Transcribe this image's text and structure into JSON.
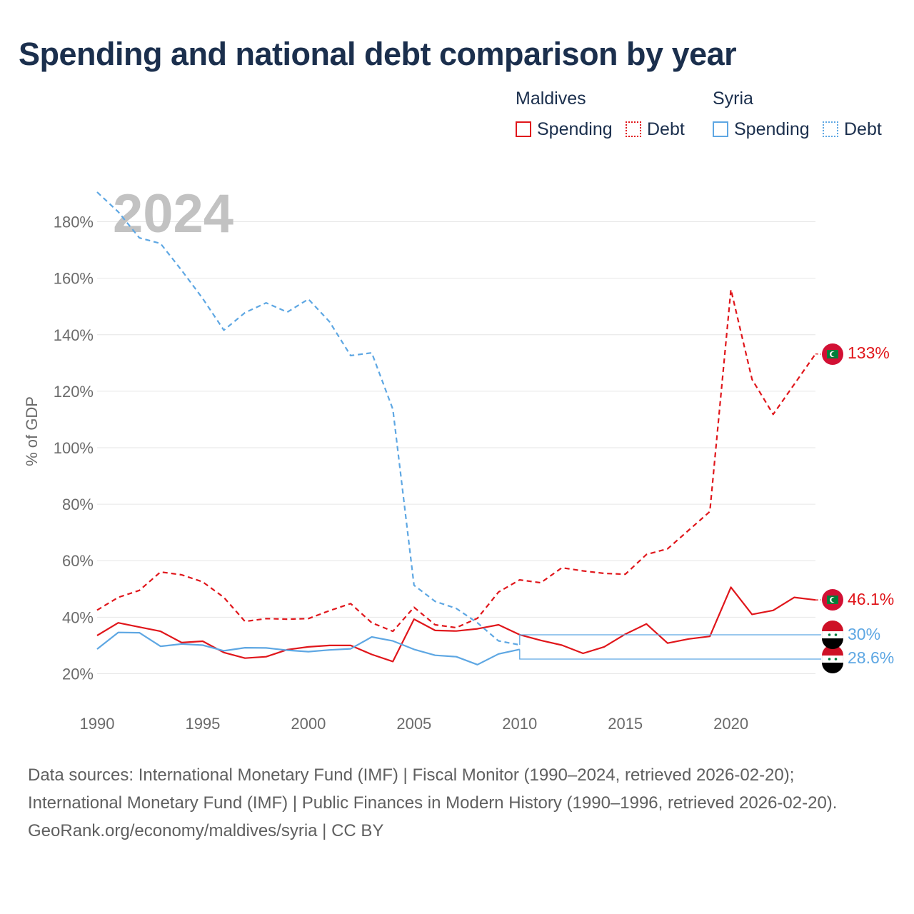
{
  "title": "Spending and national debt comparison by year",
  "legend": {
    "groups": [
      {
        "country": "Maldives",
        "spending_label": "Spending",
        "debt_label": "Debt",
        "color": "#e0161b"
      },
      {
        "country": "Syria",
        "spending_label": "Spending",
        "debt_label": "Debt",
        "color": "#5ea7e3"
      }
    ]
  },
  "year_overlay": "2024",
  "footer": {
    "sources": "Data sources: International Monetary Fund (IMF) | Fiscal Monitor (1990–2024, retrieved 2026-02-20); International Monetary Fund (IMF) | Public Finances in Modern History (1990–1996, retrieved 2026-02-20).",
    "credit": "GeoRank.org/economy/maldives/syria | CC BY"
  },
  "chart_data": {
    "type": "line",
    "title": "Spending and national debt comparison by year",
    "xlabel": "",
    "ylabel": "% of GDP",
    "xlim": [
      1990,
      2024
    ],
    "ylim": [
      10,
      190
    ],
    "xticks": [
      1990,
      1995,
      2000,
      2005,
      2010,
      2015,
      2020
    ],
    "xtick_labels": [
      "1990",
      "1995",
      "2000",
      "2005",
      "2010",
      "2015",
      "2020"
    ],
    "yticks": [
      20,
      40,
      60,
      80,
      100,
      120,
      140,
      160,
      180
    ],
    "ytick_labels": [
      "20%",
      "40%",
      "60%",
      "80%",
      "100%",
      "120%",
      "140%",
      "160%",
      "180%"
    ],
    "grid": true,
    "legend_position": "top-right",
    "series": [
      {
        "name": "Maldives Spending",
        "country": "Maldives",
        "measure": "Spending",
        "style": "solid",
        "color": "#e0161b",
        "x": [
          1990,
          1991,
          1992,
          1993,
          1994,
          1995,
          1996,
          1997,
          1998,
          1999,
          2000,
          2001,
          2002,
          2003,
          2004,
          2005,
          2006,
          2007,
          2008,
          2009,
          2010,
          2011,
          2012,
          2013,
          2014,
          2015,
          2016,
          2017,
          2018,
          2019,
          2020,
          2021,
          2022,
          2023,
          2024
        ],
        "values": [
          33.5,
          38,
          36.5,
          35,
          31,
          31.5,
          27.5,
          25.5,
          26,
          28.5,
          29.5,
          30,
          30,
          26.8,
          24.3,
          39.3,
          35.3,
          35.1,
          35.9,
          37.3,
          33.8,
          31.8,
          30.1,
          27.2,
          29.5,
          34,
          37.6,
          30.8,
          32.3,
          33.2,
          50.6,
          41,
          42.4,
          47,
          46.1
        ],
        "end_label": "46.1%"
      },
      {
        "name": "Maldives Debt",
        "country": "Maldives",
        "measure": "Debt",
        "style": "dashed",
        "color": "#e0161b",
        "x": [
          1990,
          1991,
          1992,
          1993,
          1994,
          1995,
          1996,
          1997,
          1998,
          1999,
          2000,
          2001,
          2002,
          2003,
          2004,
          2005,
          2006,
          2007,
          2008,
          2009,
          2010,
          2011,
          2012,
          2013,
          2014,
          2015,
          2016,
          2017,
          2018,
          2019,
          2020,
          2021,
          2022,
          2023,
          2024
        ],
        "values": [
          42.5,
          47,
          49.5,
          56,
          55,
          52.5,
          47,
          38.5,
          39.5,
          39.3,
          39.5,
          42.3,
          44.8,
          38,
          35,
          43.5,
          37.3,
          36.3,
          39.6,
          48.9,
          53.2,
          52.2,
          57.5,
          56.4,
          55.5,
          55.2,
          62.2,
          64.2,
          70.8,
          77.4,
          156,
          124.2,
          111.8,
          122.5,
          133.2
        ],
        "end_label": "133%"
      },
      {
        "name": "Syria Spending",
        "country": "Syria",
        "measure": "Spending",
        "style": "solid",
        "color": "#5ea7e3",
        "x": [
          1990,
          1991,
          1992,
          1993,
          1994,
          1995,
          1996,
          1997,
          1998,
          1999,
          2000,
          2001,
          2002,
          2003,
          2004,
          2005,
          2006,
          2007,
          2008,
          2009,
          2010
        ],
        "values": [
          28.7,
          34.6,
          34.5,
          29.7,
          30.5,
          30.1,
          28.1,
          29.2,
          29.1,
          28.3,
          27.8,
          28.4,
          28.8,
          33,
          31.6,
          28.6,
          26.5,
          26,
          23.2,
          27,
          28.6
        ],
        "end_label": "28.6%"
      },
      {
        "name": "Syria Debt",
        "country": "Syria",
        "measure": "Debt",
        "style": "dashed",
        "color": "#5ea7e3",
        "x": [
          1990,
          1991,
          1992,
          1993,
          1994,
          1995,
          1996,
          1997,
          1998,
          1999,
          2000,
          2001,
          2002,
          2003,
          2004,
          2005,
          2006,
          2007,
          2008,
          2009,
          2010
        ],
        "values": [
          190.5,
          183.5,
          174.3,
          172.3,
          162.8,
          152.8,
          141.6,
          147.8,
          151.3,
          148,
          152.6,
          144.6,
          132.6,
          133.6,
          113.6,
          51.3,
          45.6,
          43.1,
          38,
          31.6,
          30.2
        ],
        "end_label": "30%"
      }
    ]
  }
}
